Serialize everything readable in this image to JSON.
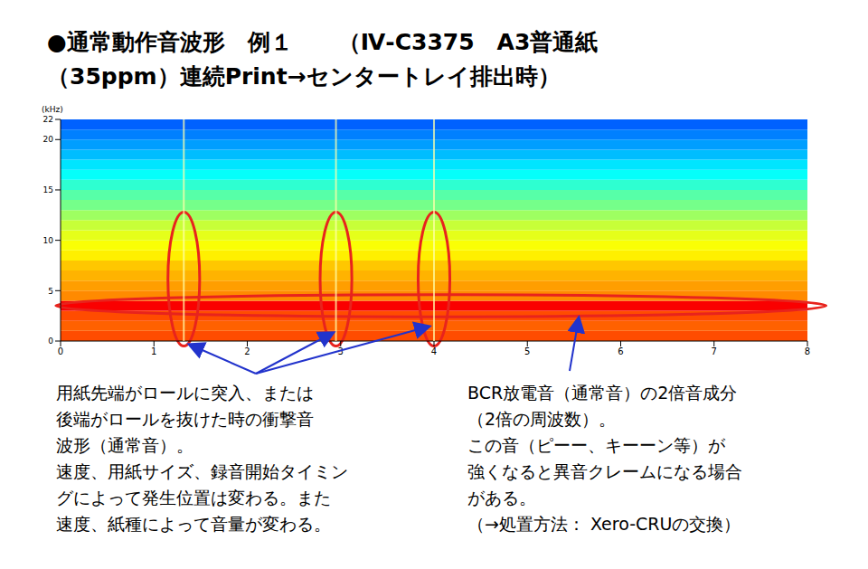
{
  "chart_data": {
    "type": "spectrogram",
    "title": [
      "●通常動作音波形　例１　　（Ⅳ-C3375　A3普通紙",
      "（35ppm）連続Print→センタートレイ排出時）"
    ],
    "y_label": "(kHz)",
    "xlim": [
      0,
      8
    ],
    "xticks": [
      0,
      1,
      2,
      3,
      4,
      5,
      6,
      7,
      8
    ],
    "ylim": [
      0,
      22
    ],
    "yticks": [
      0,
      5,
      10,
      15,
      20,
      22
    ],
    "intensity": {
      "y_bins": [
        0,
        1,
        2,
        3,
        4,
        5,
        6,
        7,
        8,
        9,
        10,
        11,
        12,
        13,
        14,
        15,
        16,
        17,
        18,
        19,
        20,
        21,
        22
      ],
      "values": [
        0.8,
        0.78,
        0.8,
        0.88,
        0.74,
        0.72,
        0.7,
        0.68,
        0.64,
        0.62,
        0.6,
        0.57,
        0.53,
        0.49,
        0.46,
        0.42,
        0.38,
        0.35,
        0.31,
        0.28,
        0.25,
        0.22
      ]
    },
    "impulses": [
      1.32,
      2.95,
      4.0
    ],
    "highlights": [
      {
        "x": [
          1.15,
          1.49
        ],
        "y": [
          -0.5,
          12.8
        ]
      },
      {
        "x": [
          2.78,
          3.12
        ],
        "y": [
          -0.5,
          12.8
        ]
      },
      {
        "x": [
          3.83,
          4.17
        ],
        "y": [
          -0.5,
          12.8
        ]
      },
      {
        "x": [
          -0.05,
          8.2
        ],
        "y": [
          2.4,
          4.6
        ]
      }
    ],
    "annotations": [
      {
        "lines": [
          "用紙先端がロールに突入、または",
          "後端がロールを抜けた時の衝撃音",
          "波形（通常音）。",
          "速度、用紙サイズ、録音開始タイミン",
          "グによって発生位置は変わる。また",
          "速度、紙種によって音量が変わる。"
        ]
      },
      {
        "lines": [
          "BCR放電音（通常音）の2倍音成分",
          "（2倍の周波数）。",
          "この音（ピーー、キーーン等）が",
          "強くなると異音クレームになる場合",
          "がある。",
          "（→処置方法：  Xero-CRUの交換）"
        ]
      }
    ]
  }
}
